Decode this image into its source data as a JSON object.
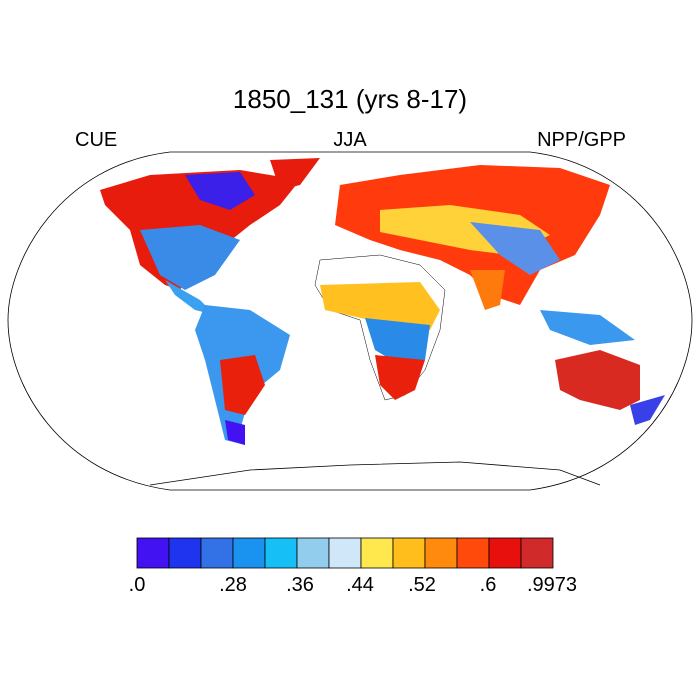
{
  "title": "1850_131 (yrs 8-17)",
  "left_label": "CUE",
  "center_label": "JJA",
  "right_label": "NPP/GPP",
  "colorbar": {
    "colors": [
      "#4212f2",
      "#1f34ee",
      "#3272e6",
      "#1a92f0",
      "#16c0f6",
      "#92cdee",
      "#cfe7f8",
      "#ffe74e",
      "#ffbe1c",
      "#ff8a0e",
      "#ff4a0c",
      "#e8100c",
      "#d02a2a"
    ],
    "labels": [
      ".0",
      ".28",
      ".36",
      ".44",
      ".52",
      ".6",
      ".9973"
    ]
  }
}
